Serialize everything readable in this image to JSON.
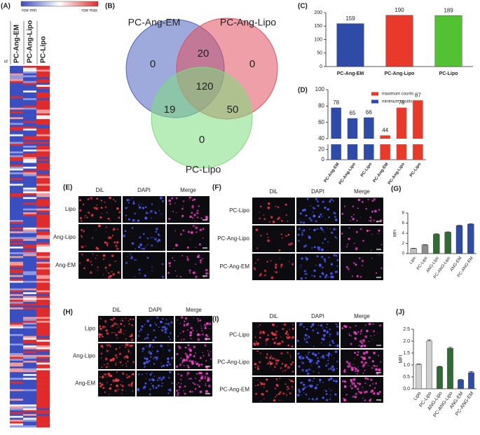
{
  "chart_data": [
    {
      "type": "heatmap",
      "panel": "(A)",
      "legend_min": "row min",
      "legend_max": "row max",
      "row_header": "id",
      "columns": [
        "PC-Ang-EM",
        "PC-Ang-Lipo",
        "PC-Lipo"
      ]
    },
    {
      "type": "venn",
      "panel": "(B)",
      "sets": [
        {
          "name": "PC-Ang-EM",
          "color": "#4f63c0"
        },
        {
          "name": "PC-Ang-Lipo",
          "color": "#e0505f"
        },
        {
          "name": "PC-Lipo",
          "color": "#7ddc7d"
        }
      ],
      "values": [
        0,
        20,
        0,
        120,
        19,
        50,
        0
      ]
    },
    {
      "type": "bar",
      "panel": "(C)",
      "categories": [
        "PC-Ang-EM",
        "PC-Ang-Lipo",
        "PC-Lipo"
      ],
      "values": [
        159,
        190,
        189
      ],
      "colors": [
        "#2f4ba8",
        "#e8392b",
        "#52c232"
      ],
      "ylim": [
        0,
        200
      ],
      "yticks": [
        0,
        50,
        100,
        150,
        200
      ],
      "value_labels_shown": true
    },
    {
      "type": "broken-bar",
      "panel": "(D)",
      "categories": [
        "PC-Ang-EM",
        "PC-Ang-Lipo",
        "PC-Lipo",
        "PC-Ang-EM",
        "PC-Ang-Lipo",
        "PC-Lipo"
      ],
      "series": [
        {
          "name": "maximum counts",
          "color": "#e8392b",
          "values": [
            null,
            null,
            null,
            44,
            78,
            87
          ]
        },
        {
          "name": "minimum counts",
          "color": "#2f4ba8",
          "values": [
            78,
            65,
            66,
            null,
            null,
            null
          ]
        }
      ],
      "ylim": [
        0,
        100
      ],
      "ybreak": [
        30,
        40
      ],
      "yticks": [
        0,
        20,
        40,
        60,
        80,
        100
      ],
      "legend": "top-right"
    },
    {
      "type": "bar",
      "panel": "(G)",
      "ylabel": "MFI",
      "categories": [
        "Lipo",
        "PC-Lipo",
        "ANG-Lipo",
        "PC-ANG-Lipo",
        "ANG-EM",
        "PC-ANG-EM"
      ],
      "values": [
        1.0,
        1.7,
        3.8,
        4.2,
        5.5,
        5.8
      ],
      "errors": [
        0.05,
        0.05,
        0.1,
        0.08,
        0.06,
        0.06
      ],
      "colors": [
        "#bdbdbd",
        "#8c8c8c",
        "#2f6b32",
        "#2f6b32",
        "#2f4ba8",
        "#2f4ba8"
      ],
      "ylim": [
        0,
        8
      ],
      "yticks": [
        0,
        2,
        4,
        6,
        8
      ]
    },
    {
      "type": "bar",
      "panel": "(J)",
      "ylabel": "MFI",
      "categories": [
        "Lipo",
        "PC-Lipo",
        "ANG-Lipo",
        "PC-ANG-Lipo",
        "ANG-EM",
        "PC-ANG-EM"
      ],
      "values": [
        1.02,
        2.0,
        0.92,
        1.7,
        0.37,
        0.68
      ],
      "errors": [
        0.02,
        0.05,
        0.02,
        0.04,
        0.02,
        0.04
      ],
      "colors": [
        "#d0d0d0",
        "#d0d0d0",
        "#2f6b32",
        "#2f6b32",
        "#2f4ba8",
        "#2f4ba8"
      ],
      "ylim": [
        0,
        2.5
      ],
      "yticks": [
        {
          "value": 0,
          "label": "0.0"
        },
        {
          "value": 0.5,
          "label": "0.5"
        },
        {
          "value": 1,
          "label": "1.0"
        },
        {
          "value": 1.5,
          "label": "1.5"
        },
        {
          "value": 2,
          "label": "2.0"
        },
        {
          "value": 2.5,
          "label": "2.5"
        }
      ]
    }
  ],
  "image_panels": [
    {
      "panel": "(E)",
      "columns": [
        "DiL",
        "DAPI",
        "Merge"
      ],
      "rows": [
        "Lipo",
        "Ang-Lipo",
        "Ang-EM"
      ]
    },
    {
      "panel": "(F)",
      "columns": [
        "DiL",
        "DAPI",
        "Merge"
      ],
      "rows": [
        "PC-Lipo",
        "PC-Ang-Lipo",
        "PC-Ang-EM"
      ]
    },
    {
      "panel": "(H)",
      "columns": [
        "DiL",
        "DAPI",
        "Merge"
      ],
      "rows": [
        "Lipo",
        "Ang-Lipo",
        "Ang-EM"
      ]
    },
    {
      "panel": "(I)",
      "columns": [
        "DiL",
        "DAPI",
        "Merge"
      ],
      "rows": [
        "PC-Lipo",
        "PC-Ang-Lipo",
        "PC-Ang-EM"
      ]
    }
  ]
}
